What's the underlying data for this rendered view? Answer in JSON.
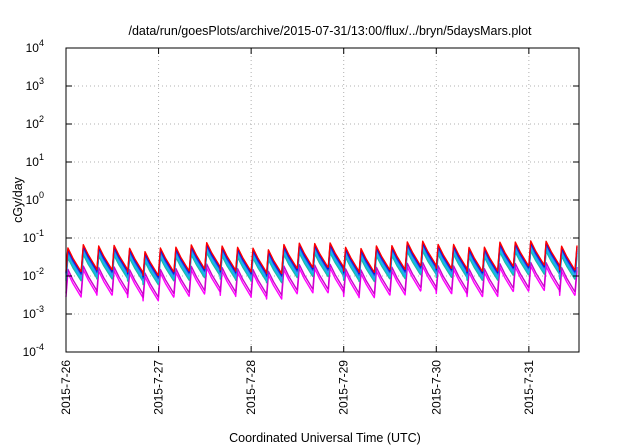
{
  "chart_data": {
    "type": "line",
    "title": "/data/run/goesPlots/archive/2015-07-31/13:00/flux/../bryn/5daysMars.plot",
    "xlabel": "Coordinated Universal Time (UTC)",
    "ylabel": "cGy/day",
    "y_scale": "log",
    "ylim": [
      0.0001,
      10000
    ],
    "xlim": [
      "2015-07-26 00:00",
      "2015-07-31 13:00"
    ],
    "grid": true,
    "y_ticks": [
      {
        "base": "10",
        "exp": "4"
      },
      {
        "base": "10",
        "exp": "3"
      },
      {
        "base": "10",
        "exp": "2"
      },
      {
        "base": "10",
        "exp": "1"
      },
      {
        "base": "10",
        "exp": "0"
      },
      {
        "base": "10",
        "exp": "-1"
      },
      {
        "base": "10",
        "exp": "-2"
      },
      {
        "base": "10",
        "exp": "-3"
      },
      {
        "base": "10",
        "exp": "-4"
      }
    ],
    "x_ticks": [
      "2015-7-26",
      "2015-7-27",
      "2015-7-28",
      "2015-7-29",
      "2015-7-30",
      "2015-7-31"
    ],
    "pattern": {
      "cycles_per_day": 6,
      "peak": 0.05,
      "trough": 0.012,
      "note_rise_at_end": true
    },
    "series": [
      {
        "color": "#ff0000",
        "peak": 0.055,
        "trough": 0.013
      },
      {
        "color": "#0000ff",
        "peak": 0.05,
        "trough": 0.012
      },
      {
        "color": "#1e64c8",
        "peak": 0.045,
        "trough": 0.011
      },
      {
        "color": "#3296ff",
        "peak": 0.04,
        "trough": 0.0095
      },
      {
        "color": "#00ccdd",
        "peak": 0.035,
        "trough": 0.0085
      },
      {
        "color": "#20b2aa",
        "peak": 0.03,
        "trough": 0.0075
      },
      {
        "color": "#cc00cc",
        "peak": 0.015,
        "trough": 0.0035
      },
      {
        "color": "#ff00ff",
        "peak": 0.012,
        "trough": 0.0028
      }
    ]
  }
}
